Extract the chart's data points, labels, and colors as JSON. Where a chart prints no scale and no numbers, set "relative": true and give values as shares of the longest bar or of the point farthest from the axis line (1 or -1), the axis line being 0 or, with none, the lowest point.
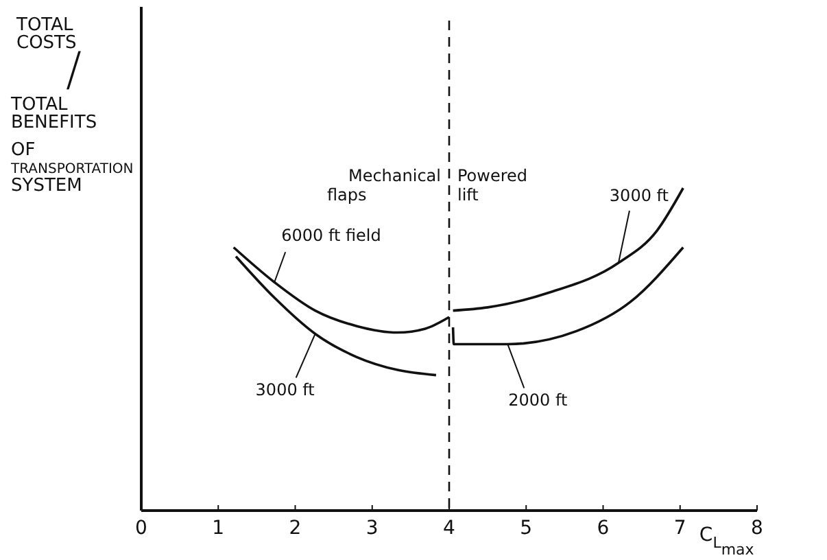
{
  "chart_data": {
    "type": "line",
    "relative": true,
    "ylabel": "TOTAL COSTS/TOTAL BENEFITS OF TRANSPORTATION SYSTEM",
    "xlabel": "C$_{L}$$_{max}$",
    "xlim": [
      0,
      8
    ],
    "xticks": [
      0,
      1,
      2,
      3,
      4,
      5,
      6,
      7,
      8
    ],
    "grid": false,
    "legend": false,
    "marker": "none",
    "line_style": "solid",
    "color": "#111111",
    "series": [
      {
        "name": "6000 ft field",
        "x": [
          1.2,
          1.73,
          2.26,
          2.8,
          3.33,
          3.69,
          4.0
        ],
        "values": [
          0.816,
          0.708,
          0.62,
          0.572,
          0.552,
          0.564,
          0.6
        ]
      },
      {
        "name": "3000 ft",
        "x": [
          1.23,
          1.73,
          2.26,
          2.8,
          3.33,
          3.83
        ],
        "values": [
          0.788,
          0.66,
          0.548,
          0.476,
          0.436,
          0.42
        ]
      },
      {
        "name": "3000 ft",
        "x": [
          4.05,
          4.5,
          5.3,
          6.2,
          6.7,
          7.04
        ],
        "values": [
          0.62,
          0.63,
          0.676,
          0.768,
          0.868,
          1.0
        ]
      },
      {
        "name": "2000 ft",
        "x": [
          4.05,
          4.06,
          4.76,
          5.65,
          6.36,
          7.04
        ],
        "values": [
          0.568,
          0.516,
          0.516,
          0.556,
          0.648,
          0.816
        ]
      }
    ],
    "ref_lines": [
      {
        "axis": "x",
        "value": 4,
        "line_style": "dashed"
      }
    ],
    "annotations": [
      {
        "text": "Mechanical flaps",
        "x": 4
      },
      {
        "text": "Powered lift",
        "x": 4
      }
    ]
  }
}
